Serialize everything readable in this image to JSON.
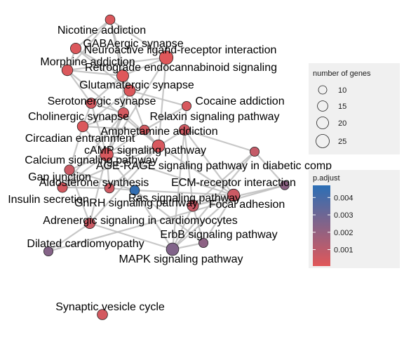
{
  "chart_data": {
    "type": "network",
    "title": "",
    "nodes": [
      {
        "id": "Nicotine addiction",
        "genes": 13,
        "p_adjust": 0.0002
      },
      {
        "id": "GABAergic synapse",
        "genes": 16,
        "p_adjust": 0.0002
      },
      {
        "id": "Neuroactive ligand-receptor interaction",
        "genes": 26,
        "p_adjust": 0.0001
      },
      {
        "id": "Morphine addiction",
        "genes": 17,
        "p_adjust": 0.0002
      },
      {
        "id": "Retrograde endocannabinoid signaling",
        "genes": 20,
        "p_adjust": 0.0001
      },
      {
        "id": "Glutamatergic synapse",
        "genes": 18,
        "p_adjust": 0.0002
      },
      {
        "id": "Serotonergic synapse",
        "genes": 15,
        "p_adjust": 0.0004
      },
      {
        "id": "Cocaine addiction",
        "genes": 12,
        "p_adjust": 0.0003
      },
      {
        "id": "Cholinergic synapse",
        "genes": 16,
        "p_adjust": 0.0004
      },
      {
        "id": "Relaxin signaling pathway",
        "genes": 16,
        "p_adjust": 0.0005
      },
      {
        "id": "Circadian entrainment",
        "genes": 17,
        "p_adjust": 0.0002
      },
      {
        "id": "Amphetamine addiction",
        "genes": 13,
        "p_adjust": 0.0004
      },
      {
        "id": "cAMP signaling pathway",
        "genes": 22,
        "p_adjust": 0.0003
      },
      {
        "id": "Calcium signaling pathway",
        "genes": 24,
        "p_adjust": 0.0003
      },
      {
        "id": "AGE-RAGE signaling pathway in diabetic comp",
        "genes": 12,
        "p_adjust": 0.0008
      },
      {
        "id": "Gap junction",
        "genes": 14,
        "p_adjust": 0.0006
      },
      {
        "id": "Aldosterone synthesis",
        "genes": 13,
        "p_adjust": 0.0005
      },
      {
        "id": "ECM-receptor interaction",
        "genes": 11,
        "p_adjust": 0.0022
      },
      {
        "id": "Insulin secretion",
        "genes": 14,
        "p_adjust": 0.0004
      },
      {
        "id": "Ras signaling pathway",
        "genes": 21,
        "p_adjust": 0.0006
      },
      {
        "id": "GnRH signaling pathway",
        "genes": 13,
        "p_adjust": 0.0045
      },
      {
        "id": "Focal adhesion",
        "genes": 18,
        "p_adjust": 0.0007
      },
      {
        "id": "Adrenergic signaling in cardiomyocytes",
        "genes": 16,
        "p_adjust": 0.0006
      },
      {
        "id": "ErbB signaling pathway",
        "genes": 12,
        "p_adjust": 0.0022
      },
      {
        "id": "Dilated cardiomyopathy",
        "genes": 12,
        "p_adjust": 0.0024
      },
      {
        "id": "MAPK signaling pathway",
        "genes": 22,
        "p_adjust": 0.0025
      },
      {
        "id": "Synaptic vesicle cycle",
        "genes": 15,
        "p_adjust": 0.0004
      }
    ],
    "edges": [
      [
        "Nicotine addiction",
        "Neuroactive ligand-receptor interaction"
      ],
      [
        "Nicotine addiction",
        "GABAergic synapse"
      ],
      [
        "Nicotine addiction",
        "Retrograde endocannabinoid signaling"
      ],
      [
        "Nicotine addiction",
        "Morphine addiction"
      ],
      [
        "Nicotine addiction",
        "Glutamatergic synapse"
      ],
      [
        "GABAergic synapse",
        "Morphine addiction"
      ],
      [
        "GABAergic synapse",
        "Retrograde endocannabinoid signaling"
      ],
      [
        "GABAergic synapse",
        "Glutamatergic synapse"
      ],
      [
        "Neuroactive ligand-receptor interaction",
        "Morphine addiction"
      ],
      [
        "Neuroactive ligand-receptor interaction",
        "Retrograde endocannabinoid signaling"
      ],
      [
        "Neuroactive ligand-receptor interaction",
        "Calcium signaling pathway"
      ],
      [
        "Neuroactive ligand-receptor interaction",
        "cAMP signaling pathway"
      ],
      [
        "Morphine addiction",
        "Retrograde endocannabinoid signaling"
      ],
      [
        "Morphine addiction",
        "cAMP signaling pathway"
      ],
      [
        "Morphine addiction",
        "Serotonergic synapse"
      ],
      [
        "Retrograde endocannabinoid signaling",
        "Glutamatergic synapse"
      ],
      [
        "Retrograde endocannabinoid signaling",
        "Serotonergic synapse"
      ],
      [
        "Retrograde endocannabinoid signaling",
        "Cholinergic synapse"
      ],
      [
        "Glutamatergic synapse",
        "Circadian entrainment"
      ],
      [
        "Glutamatergic synapse",
        "Cocaine addiction"
      ],
      [
        "Glutamatergic synapse",
        "Amphetamine addiction"
      ],
      [
        "Glutamatergic synapse",
        "Calcium signaling pathway"
      ],
      [
        "Serotonergic synapse",
        "Cholinergic synapse"
      ],
      [
        "Serotonergic synapse",
        "Circadian entrainment"
      ],
      [
        "Serotonergic synapse",
        "Calcium signaling pathway"
      ],
      [
        "Cocaine addiction",
        "Amphetamine addiction"
      ],
      [
        "Cocaine addiction",
        "Relaxin signaling pathway"
      ],
      [
        "Cholinergic synapse",
        "Circadian entrainment"
      ],
      [
        "Cholinergic synapse",
        "Calcium signaling pathway"
      ],
      [
        "Cholinergic synapse",
        "Insulin secretion"
      ],
      [
        "Cholinergic synapse",
        "cAMP signaling pathway"
      ],
      [
        "Relaxin signaling pathway",
        "cAMP signaling pathway"
      ],
      [
        "Relaxin signaling pathway",
        "Ras signaling pathway"
      ],
      [
        "Relaxin signaling pathway",
        "Focal adhesion"
      ],
      [
        "Relaxin signaling pathway",
        "MAPK signaling pathway"
      ],
      [
        "Circadian entrainment",
        "Amphetamine addiction"
      ],
      [
        "Circadian entrainment",
        "Calcium signaling pathway"
      ],
      [
        "Circadian entrainment",
        "Gap junction"
      ],
      [
        "Amphetamine addiction",
        "Calcium signaling pathway"
      ],
      [
        "Amphetamine addiction",
        "cAMP signaling pathway"
      ],
      [
        "cAMP signaling pathway",
        "Calcium signaling pathway"
      ],
      [
        "cAMP signaling pathway",
        "Ras signaling pathway"
      ],
      [
        "cAMP signaling pathway",
        "Insulin secretion"
      ],
      [
        "cAMP signaling pathway",
        "Aldosterone synthesis"
      ],
      [
        "cAMP signaling pathway",
        "Adrenergic signaling in cardiomyocytes"
      ],
      [
        "Calcium signaling pathway",
        "Gap junction"
      ],
      [
        "Calcium signaling pathway",
        "Aldosterone synthesis"
      ],
      [
        "Calcium signaling pathway",
        "Adrenergic signaling in cardiomyocytes"
      ],
      [
        "Calcium signaling pathway",
        "GnRH signaling pathway"
      ],
      [
        "Calcium signaling pathway",
        "Insulin secretion"
      ],
      [
        "Calcium signaling pathway",
        "Ras signaling pathway"
      ],
      [
        "AGE-RAGE signaling pathway in diabetic comp",
        "ECM-receptor interaction"
      ],
      [
        "AGE-RAGE signaling pathway in diabetic comp",
        "Focal adhesion"
      ],
      [
        "AGE-RAGE signaling pathway in diabetic comp",
        "MAPK signaling pathway"
      ],
      [
        "AGE-RAGE signaling pathway in diabetic comp",
        "Relaxin signaling pathway"
      ],
      [
        "Gap junction",
        "Adrenergic signaling in cardiomyocytes"
      ],
      [
        "Gap junction",
        "GnRH signaling pathway"
      ],
      [
        "Aldosterone synthesis",
        "Insulin secretion"
      ],
      [
        "Aldosterone synthesis",
        "GnRH signaling pathway"
      ],
      [
        "ECM-receptor interaction",
        "Focal adhesion"
      ],
      [
        "ECM-receptor interaction",
        "Dilated cardiomyopathy"
      ],
      [
        "Ras signaling pathway",
        "Focal adhesion"
      ],
      [
        "Ras signaling pathway",
        "MAPK signaling pathway"
      ],
      [
        "Ras signaling pathway",
        "ErbB signaling pathway"
      ],
      [
        "Ras signaling pathway",
        "GnRH signaling pathway"
      ],
      [
        "GnRH signaling pathway",
        "MAPK signaling pathway"
      ],
      [
        "GnRH signaling pathway",
        "ErbB signaling pathway"
      ],
      [
        "Focal adhesion",
        "ErbB signaling pathway"
      ],
      [
        "Focal adhesion",
        "MAPK signaling pathway"
      ],
      [
        "Adrenergic signaling in cardiomyocytes",
        "Dilated cardiomyopathy"
      ],
      [
        "Adrenergic signaling in cardiomyocytes",
        "MAPK signaling pathway"
      ],
      [
        "ErbB signaling pathway",
        "MAPK signaling pathway"
      ]
    ],
    "legend": {
      "size_title": "number of genes",
      "size_values": [
        10,
        15,
        20,
        25
      ],
      "color_title": "p.adjust",
      "color_ticks": [
        0.001,
        0.002,
        0.003,
        0.004
      ],
      "color_tick_labels": [
        "0.001",
        "0.002",
        "0.003",
        "0.004"
      ],
      "color_low": "#e15759",
      "color_high": "#2b6fb6",
      "color_range": [
        5e-05,
        0.0047
      ],
      "placement": "right"
    }
  }
}
